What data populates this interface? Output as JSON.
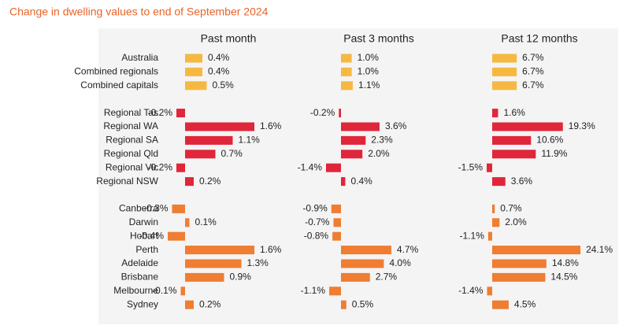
{
  "chart_data": {
    "type": "bar",
    "orientation": "horizontal",
    "title": "Change in dwelling values to end of September 2024",
    "categories": [
      "Australia",
      "Combined regionals",
      "Combined capitals",
      "Regional Tas",
      "Regional WA",
      "Regional SA",
      "Regional Qld",
      "Regional Vic",
      "Regional NSW",
      "Canberra",
      "Darwin",
      "Hobart",
      "Perth",
      "Adelaide",
      "Brisbane",
      "Melbourne",
      "Sydney"
    ],
    "colors": [
      "#f5b942",
      "#f5b942",
      "#f5b942",
      "#e0263a",
      "#e0263a",
      "#e0263a",
      "#e0263a",
      "#e0263a",
      "#e0263a",
      "#ef7d32",
      "#ef7d32",
      "#ef7d32",
      "#ef7d32",
      "#ef7d32",
      "#ef7d32",
      "#ef7d32",
      "#ef7d32"
    ],
    "series": [
      {
        "name": "Past month",
        "values": [
          0.4,
          0.4,
          0.5,
          -0.2,
          1.6,
          1.1,
          0.7,
          -0.2,
          0.2,
          -0.3,
          0.1,
          -0.4,
          1.6,
          1.3,
          0.9,
          -0.1,
          0.2
        ],
        "value_labels": [
          "0.4%",
          "0.4%",
          "0.5%",
          "-0.2%",
          "1.6%",
          "1.1%",
          "0.7%",
          "-0.2%",
          "0.2%",
          "-0.3%",
          "0.1%",
          "-0.4%",
          "1.6%",
          "1.3%",
          "0.9%",
          "-0.1%",
          "0.2%"
        ]
      },
      {
        "name": "Past 3 months",
        "values": [
          1.0,
          1.0,
          1.1,
          -0.2,
          3.6,
          2.3,
          2.0,
          -1.4,
          0.4,
          -0.9,
          -0.7,
          -0.8,
          4.7,
          4.0,
          2.7,
          -1.1,
          0.5
        ],
        "value_labels": [
          "1.0%",
          "1.0%",
          "1.1%",
          "-0.2%",
          "3.6%",
          "2.3%",
          "2.0%",
          "-1.4%",
          "0.4%",
          "-0.9%",
          "-0.7%",
          "-0.8%",
          "4.7%",
          "4.0%",
          "2.7%",
          "-1.1%",
          "0.5%"
        ]
      },
      {
        "name": "Past 12 months",
        "values": [
          6.7,
          6.7,
          6.7,
          1.6,
          19.3,
          10.6,
          11.9,
          -1.5,
          3.6,
          0.7,
          2.0,
          -1.1,
          24.1,
          14.8,
          14.5,
          -1.4,
          4.5
        ],
        "value_labels": [
          "6.7%",
          "6.7%",
          "6.7%",
          "1.6%",
          "19.3%",
          "10.6%",
          "11.9%",
          "-1.5%",
          "3.6%",
          "0.7%",
          "2.0%",
          "-1.1%",
          "24.1%",
          "14.8%",
          "14.5%",
          "-1.4%",
          "4.5%"
        ]
      }
    ]
  }
}
